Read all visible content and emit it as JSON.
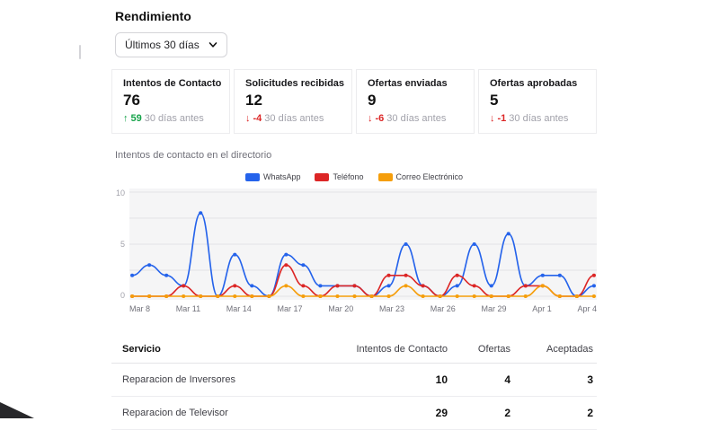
{
  "page": {
    "title": "Rendimiento"
  },
  "filter": {
    "selected": "Últimos 30 días"
  },
  "colors": {
    "green": "#16a34a",
    "red": "#dc2626"
  },
  "stats": [
    {
      "title": "Intentos de Contacto",
      "value": "76",
      "arrow": "↑",
      "delta": "59",
      "delta_color": "#16a34a",
      "period": "30 días antes"
    },
    {
      "title": "Solicitudes recibidas",
      "value": "12",
      "arrow": "↓",
      "delta": "-4",
      "delta_color": "#dc2626",
      "period": "30 días antes"
    },
    {
      "title": "Ofertas enviadas",
      "value": "9",
      "arrow": "↓",
      "delta": "-6",
      "delta_color": "#dc2626",
      "period": "30 días antes"
    },
    {
      "title": "Ofertas aprobadas",
      "value": "5",
      "arrow": "↓",
      "delta": "-1",
      "delta_color": "#dc2626",
      "period": "30 días antes"
    }
  ],
  "chart_section": {
    "title": "Intentos de contacto en el directorio"
  },
  "chart_data": {
    "type": "line",
    "title": "Intentos de contacto en el directorio",
    "xlabel": "",
    "ylabel": "",
    "ylim": [
      0,
      10
    ],
    "yticks": [
      0,
      5,
      10
    ],
    "grid": true,
    "legend_position": "top",
    "x_ticks": [
      "Mar 8",
      "Mar 11",
      "Mar 14",
      "Mar 17",
      "Mar 20",
      "Mar 23",
      "Mar 26",
      "Mar 29",
      "Apr 1",
      "Apr 4"
    ],
    "series": [
      {
        "name": "WhatsApp",
        "color": "#2563eb",
        "values": [
          2,
          3,
          2,
          1,
          8,
          0,
          4,
          1,
          0,
          4,
          3,
          1,
          1,
          1,
          0,
          1,
          5,
          1,
          0,
          1,
          5,
          1,
          6,
          1,
          2,
          2,
          0,
          1
        ]
      },
      {
        "name": "Teléfono",
        "color": "#dc2626",
        "values": [
          0,
          0,
          0,
          1,
          0,
          0,
          1,
          0,
          0,
          3,
          1,
          0,
          1,
          1,
          0,
          2,
          2,
          1,
          0,
          2,
          1,
          0,
          0,
          1,
          1,
          0,
          0,
          2
        ]
      },
      {
        "name": "Correo Electrónico",
        "color": "#f59e0b",
        "values": [
          0,
          0,
          0,
          0,
          0,
          0,
          0,
          0,
          0,
          1,
          0,
          0,
          0,
          0,
          0,
          0,
          1,
          0,
          0,
          0,
          0,
          0,
          0,
          0,
          1,
          0,
          0,
          0
        ]
      }
    ]
  },
  "table": {
    "headers": [
      "Servicio",
      "Intentos de Contacto",
      "Ofertas",
      "Aceptadas"
    ],
    "rows": [
      {
        "servicio": "Reparacion de Inversores",
        "intentos": "10",
        "ofertas": "4",
        "aceptadas": "3"
      },
      {
        "servicio": "Reparacion de Televisor",
        "intentos": "29",
        "ofertas": "2",
        "aceptadas": "2"
      }
    ]
  }
}
